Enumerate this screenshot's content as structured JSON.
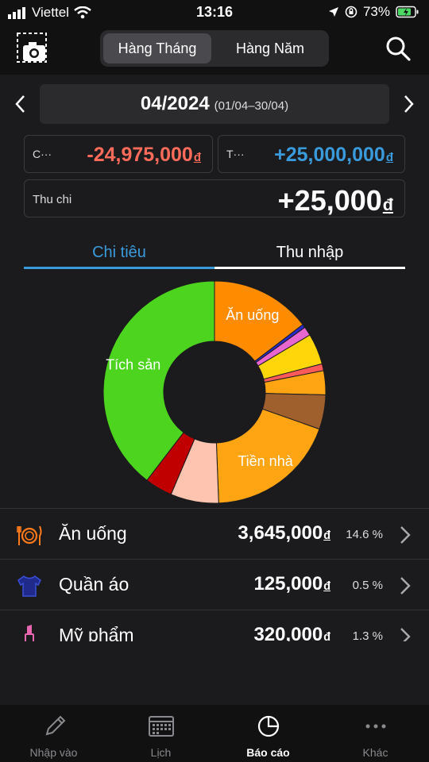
{
  "status_bar": {
    "carrier": "Viettel",
    "time": "13:16",
    "battery": "73%"
  },
  "header": {
    "segments": [
      "Hàng Tháng",
      "Hàng Năm"
    ],
    "active_segment": "Hàng Tháng"
  },
  "period": {
    "label": "04/2024",
    "range": "(01/04–30/04)"
  },
  "summary": {
    "expense_label": "C···",
    "expense_value": "-24,975,000",
    "income_label": "T···",
    "income_value": "+25,000,000",
    "balance_label": "Thu chi",
    "balance_value": "+25,000",
    "currency_symbol": "đ"
  },
  "tabs": [
    "Chi tiêu",
    "Thu nhập"
  ],
  "active_tab": "Chi tiêu",
  "chart_data": {
    "type": "pie",
    "donut": true,
    "labels": [
      "Ăn uống",
      "Tiền nhà",
      "Tích sản"
    ],
    "slices": [
      {
        "label": "Ăn uống",
        "value": 14.6,
        "color": "#ff8c00"
      },
      {
        "label": "",
        "value": 0.5,
        "color": "#2a2ac8"
      },
      {
        "label": "",
        "value": 1.3,
        "color": "#e866d0"
      },
      {
        "label": "",
        "value": 4.5,
        "color": "#ffd60a"
      },
      {
        "label": "",
        "value": 1.0,
        "color": "#ff5a5a"
      },
      {
        "label": "",
        "value": 3.5,
        "color": "#ffa514"
      },
      {
        "label": "",
        "value": 5.0,
        "color": "#a0602e"
      },
      {
        "label": "Tiền nhà",
        "value": 19.0,
        "color": "#ffa514"
      },
      {
        "label": "",
        "value": 7.0,
        "color": "#ffc4b0"
      },
      {
        "label": "",
        "value": 4.0,
        "color": "#c00000"
      },
      {
        "label": "Tích sản",
        "value": 39.6,
        "color": "#4cd41e"
      }
    ]
  },
  "categories": [
    {
      "name": "Ăn uống",
      "amount": "3,645,000",
      "percent": "14.6 %",
      "icon": "food-icon",
      "color": "#ff7a1a"
    },
    {
      "name": "Quần áo",
      "amount": "125,000",
      "percent": "0.5 %",
      "icon": "shirt-icon",
      "color": "#2a3fc8"
    },
    {
      "name": "Mỹ phẩm",
      "amount": "320,000",
      "percent": "1.3 %",
      "icon": "lipstick-icon",
      "color": "#e866b0"
    }
  ],
  "tabbar": [
    {
      "label": "Nhập vào",
      "icon": "pencil-icon"
    },
    {
      "label": "Lịch",
      "icon": "calendar-icon"
    },
    {
      "label": "Báo cáo",
      "icon": "pie-chart-icon"
    },
    {
      "label": "Khác",
      "icon": "more-icon"
    }
  ],
  "active_tabbar": "Báo cáo",
  "colors": {
    "expense": "#ff6b5a",
    "income": "#3a9bdc",
    "accent": "#3a9bdc"
  }
}
